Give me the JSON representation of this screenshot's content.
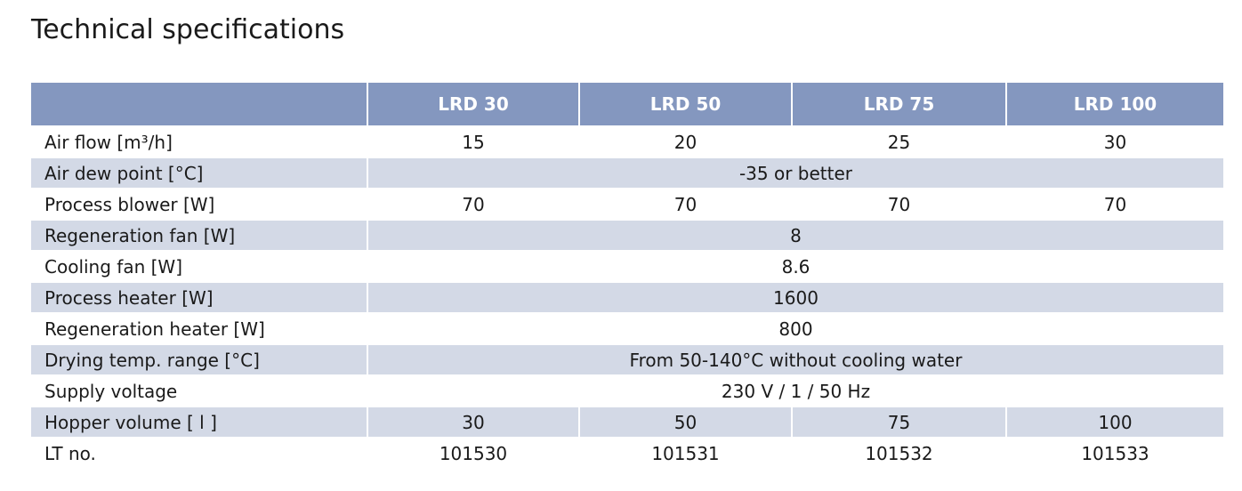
{
  "title": "Technical specifications",
  "table": {
    "header": [
      "LRD 30",
      "LRD 50",
      "LRD 75",
      "LRD 100"
    ],
    "rows": [
      {
        "label": "Air flow [m³/h]",
        "cells": [
          "15",
          "20",
          "25",
          "30"
        ]
      },
      {
        "label": "Air dew point [°C]",
        "cells": [
          "-35 or better"
        ]
      },
      {
        "label": "Process blower [W]",
        "cells": [
          "70",
          "70",
          "70",
          "70"
        ]
      },
      {
        "label": "Regeneration fan [W]",
        "cells": [
          "8"
        ]
      },
      {
        "label": "Cooling fan [W]",
        "cells": [
          "8.6"
        ]
      },
      {
        "label": "Process heater [W]",
        "cells": [
          "1600"
        ]
      },
      {
        "label": "Regeneration heater [W]",
        "cells": [
          "800"
        ]
      },
      {
        "label": "Drying temp. range [°C]",
        "cells": [
          "From 50-140°C without cooling water"
        ]
      },
      {
        "label": "Supply voltage",
        "cells": [
          "230 V / 1 / 50 Hz"
        ]
      },
      {
        "label": "Hopper volume [ l ]",
        "cells": [
          "30",
          "50",
          "75",
          "100"
        ]
      },
      {
        "label": "LT no.",
        "cells": [
          "101530",
          "101531",
          "101532",
          "101533"
        ]
      }
    ]
  }
}
